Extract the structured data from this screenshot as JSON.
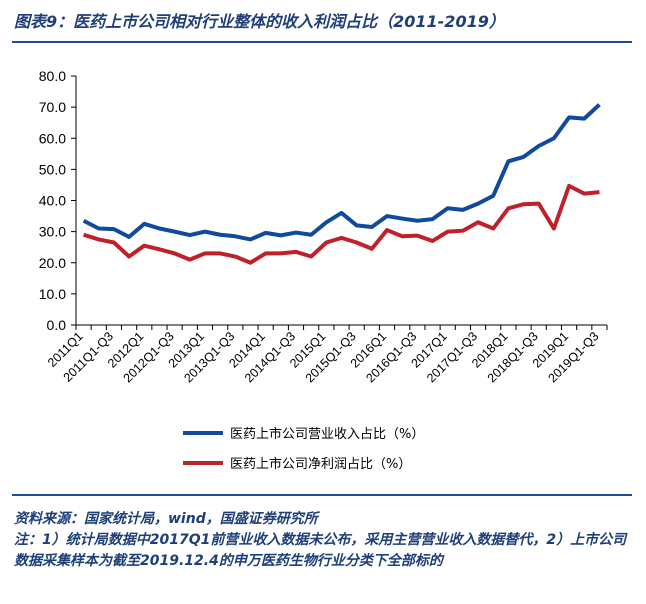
{
  "title": "图表9：医药上市公司相对行业整体的收入利润占比（2011-2019）",
  "chart_data": {
    "type": "line",
    "title": "",
    "xlabel": "",
    "ylabel": "",
    "ylim": [
      0,
      80
    ],
    "yticks": [
      "0.0",
      "10.0",
      "20.0",
      "30.0",
      "40.0",
      "50.0",
      "60.0",
      "70.0",
      "80.0"
    ],
    "grid": false,
    "legend": "bottom",
    "categories": [
      "2011Q1",
      "",
      "2011Q1-Q3",
      "",
      "2012Q1",
      "",
      "2012Q1-Q3",
      "",
      "2013Q1",
      "",
      "2013Q1-Q3",
      "",
      "2014Q1",
      "",
      "2014Q1-Q3",
      "",
      "2015Q1",
      "",
      "2015Q1-Q3",
      "",
      "2016Q1",
      "",
      "2016Q1-Q3",
      "",
      "2017Q1",
      "",
      "2017Q1-Q3",
      "",
      "2018Q1",
      "",
      "2018Q1-Q3",
      "",
      "2019Q1",
      "",
      "2019Q1-Q3"
    ],
    "series": [
      {
        "name": "医药上市公司营业收入占比（%）",
        "color": "#0f4a9c",
        "values": [
          33.5,
          31,
          30.8,
          28.3,
          32.5,
          31,
          30,
          28.9,
          30,
          29,
          28.5,
          27.5,
          29.6,
          28.8,
          29.7,
          29,
          33,
          36,
          32,
          31.5,
          35,
          34.2,
          33.5,
          34,
          37.5,
          37,
          39,
          41.5,
          52.6,
          54,
          57.5,
          60,
          66.7,
          66.3,
          70.8
        ]
      },
      {
        "name": "医药上市公司净利润占比（%）",
        "color": "#c0202a",
        "values": [
          29,
          27.5,
          26.5,
          22,
          25.5,
          24.3,
          23,
          21,
          23,
          23,
          22,
          20,
          23,
          23,
          23.5,
          22,
          26.5,
          28,
          26.5,
          24.5,
          30.5,
          28.5,
          28.7,
          27,
          30,
          30.3,
          33,
          31,
          37.5,
          38.8,
          39,
          31,
          44.7,
          42.2,
          42.7
        ]
      }
    ]
  },
  "footnote": {
    "source": "资料来源：国家统计局，wind，国盛证券研究所",
    "note": "注：1）统计局数据中2017Q1前营业收入数据未公布，采用主营营业收入数据替代，2）上市公司数据采集样本为截至2019.12.4的申万医药生物行业分类下全部标的"
  }
}
